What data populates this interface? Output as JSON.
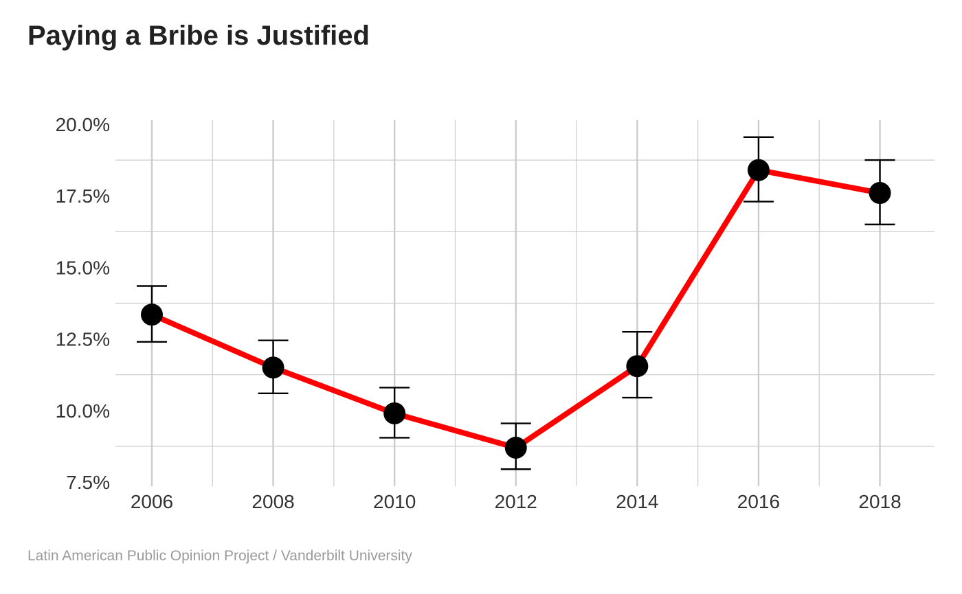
{
  "chart_data": {
    "type": "line",
    "title": "Paying a Bribe is Justified",
    "caption": "Latin American Public Opinion Project / Vanderbilt University",
    "xlabel": "",
    "ylabel": "",
    "x": [
      2006,
      2008,
      2010,
      2012,
      2014,
      2016,
      2018
    ],
    "series": [
      {
        "values": [
          13.35,
          11.5,
          9.9,
          8.7,
          11.55,
          18.4,
          17.6
        ],
        "ci_low": [
          12.4,
          10.6,
          9.05,
          7.95,
          10.45,
          17.3,
          16.5
        ],
        "ci_high": [
          14.35,
          12.45,
          10.8,
          9.55,
          12.75,
          19.55,
          18.75
        ],
        "line_color": "#ff0000",
        "marker_color": "#000000"
      }
    ],
    "x_ticks": [
      "2006",
      "2008",
      "2010",
      "2012",
      "2014",
      "2016",
      "2018"
    ],
    "y_ticks": [
      "7.5%",
      "10.0%",
      "12.5%",
      "15.0%",
      "17.5%",
      "20.0%"
    ],
    "y_tick_values": [
      7.5,
      10.0,
      12.5,
      15.0,
      17.5,
      20.0
    ],
    "xlim": [
      2005.4,
      2018.9
    ],
    "ylim": [
      7.5,
      20.0
    ],
    "grid": true,
    "grid_color": "#cccccc"
  }
}
